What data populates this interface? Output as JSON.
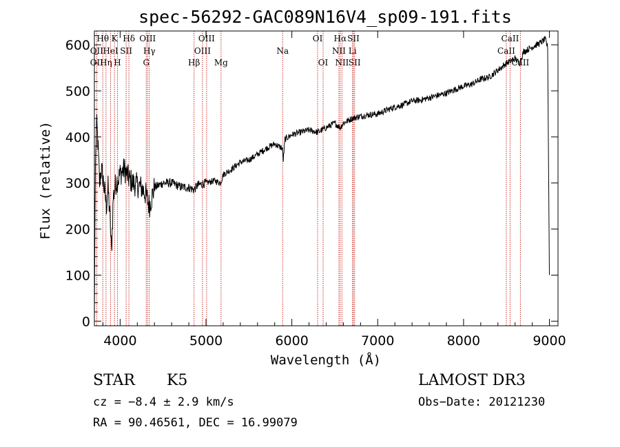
{
  "chart_data": {
    "type": "line",
    "title": "spec-56292-GAC089N16V4_sp09-191.fits",
    "xlabel": "Wavelength (Å)",
    "ylabel": "Flux (relative)",
    "xlim": [
      3700,
      9100
    ],
    "ylim": [
      -10,
      630
    ],
    "xticks": [
      4000,
      5000,
      6000,
      7000,
      8000,
      9000
    ],
    "yticks": [
      0,
      100,
      200,
      300,
      400,
      500,
      600
    ],
    "series": [
      {
        "name": "flux",
        "points": [
          [
            3700,
            5
          ],
          [
            3710,
            320
          ],
          [
            3725,
            430
          ],
          [
            3740,
            390
          ],
          [
            3760,
            300
          ],
          [
            3780,
            330
          ],
          [
            3800,
            310
          ],
          [
            3820,
            280
          ],
          [
            3840,
            250
          ],
          [
            3860,
            290
          ],
          [
            3880,
            230
          ],
          [
            3900,
            150
          ],
          [
            3920,
            270
          ],
          [
            3950,
            300
          ],
          [
            3980,
            310
          ],
          [
            4000,
            320
          ],
          [
            4050,
            330
          ],
          [
            4100,
            310
          ],
          [
            4150,
            300
          ],
          [
            4200,
            295
          ],
          [
            4250,
            290
          ],
          [
            4300,
            275
          ],
          [
            4340,
            250
          ],
          [
            4400,
            290
          ],
          [
            4500,
            300
          ],
          [
            4600,
            300
          ],
          [
            4700,
            292
          ],
          [
            4800,
            290
          ],
          [
            4860,
            285
          ],
          [
            4900,
            295
          ],
          [
            5000,
            300
          ],
          [
            5100,
            305
          ],
          [
            5170,
            300
          ],
          [
            5200,
            318
          ],
          [
            5300,
            330
          ],
          [
            5400,
            345
          ],
          [
            5500,
            350
          ],
          [
            5600,
            362
          ],
          [
            5700,
            375
          ],
          [
            5800,
            385
          ],
          [
            5890,
            375
          ],
          [
            5900,
            350
          ],
          [
            5920,
            395
          ],
          [
            6000,
            405
          ],
          [
            6100,
            410
          ],
          [
            6200,
            415
          ],
          [
            6300,
            410
          ],
          [
            6400,
            420
          ],
          [
            6500,
            430
          ],
          [
            6563,
            420
          ],
          [
            6600,
            430
          ],
          [
            6700,
            440
          ],
          [
            6800,
            445
          ],
          [
            6900,
            448
          ],
          [
            7000,
            450
          ],
          [
            7100,
            458
          ],
          [
            7200,
            465
          ],
          [
            7300,
            470
          ],
          [
            7400,
            478
          ],
          [
            7500,
            480
          ],
          [
            7600,
            485
          ],
          [
            7700,
            490
          ],
          [
            7800,
            495
          ],
          [
            7900,
            503
          ],
          [
            8000,
            510
          ],
          [
            8100,
            515
          ],
          [
            8200,
            525
          ],
          [
            8300,
            530
          ],
          [
            8400,
            545
          ],
          [
            8500,
            560
          ],
          [
            8600,
            570
          ],
          [
            8650,
            560
          ],
          [
            8700,
            585
          ],
          [
            8800,
            595
          ],
          [
            8900,
            605
          ],
          [
            8950,
            612
          ],
          [
            8980,
            595
          ],
          [
            9000,
            100
          ]
        ]
      }
    ],
    "lines": [
      {
        "label": "Hθ",
        "x": 3798,
        "row": 0
      },
      {
        "label": "OII",
        "x": 3727,
        "row": 1
      },
      {
        "label": "OII",
        "x": 3727,
        "row": 2
      },
      {
        "label": "Hη",
        "x": 3835,
        "row": 2
      },
      {
        "label": "HeI",
        "x": 3889,
        "row": 1
      },
      {
        "label": "K",
        "x": 3934,
        "row": 0
      },
      {
        "label": "H",
        "x": 3969,
        "row": 2
      },
      {
        "label": "SII",
        "x": 4070,
        "row": 1
      },
      {
        "label": "Hδ",
        "x": 4102,
        "row": 0
      },
      {
        "label": "OIII",
        "x": 4320,
        "row": 0
      },
      {
        "label": "Hγ",
        "x": 4340,
        "row": 1
      },
      {
        "label": "G",
        "x": 4304,
        "row": 2
      },
      {
        "label": "Hβ",
        "x": 4861,
        "row": 2
      },
      {
        "label": "OIII",
        "x": 5007,
        "row": 0
      },
      {
        "label": "OIII",
        "x": 4959,
        "row": 1
      },
      {
        "label": "Mg",
        "x": 5175,
        "row": 2
      },
      {
        "label": "Na",
        "x": 5893,
        "row": 1
      },
      {
        "label": "OI",
        "x": 6300,
        "row": 0
      },
      {
        "label": "OI",
        "x": 6364,
        "row": 2
      },
      {
        "label": "Hα",
        "x": 6563,
        "row": 0
      },
      {
        "label": "NII",
        "x": 6548,
        "row": 1
      },
      {
        "label": "NII",
        "x": 6584,
        "row": 2
      },
      {
        "label": "SII",
        "x": 6717,
        "row": 0
      },
      {
        "label": "Li",
        "x": 6707,
        "row": 1
      },
      {
        "label": "SII",
        "x": 6731,
        "row": 2
      },
      {
        "label": "CaII",
        "x": 8542,
        "row": 0
      },
      {
        "label": "CaII",
        "x": 8498,
        "row": 1
      },
      {
        "label": "CaII",
        "x": 8662,
        "row": 2
      }
    ]
  },
  "info": {
    "class": "STAR",
    "subclass": "K5",
    "survey": "LAMOST DR3",
    "cz": "cz = −8.4 ± 2.9 km/s",
    "obs_date": "Obs−Date: 20121230",
    "radec": "RA =  90.46561, DEC =  16.99079"
  }
}
